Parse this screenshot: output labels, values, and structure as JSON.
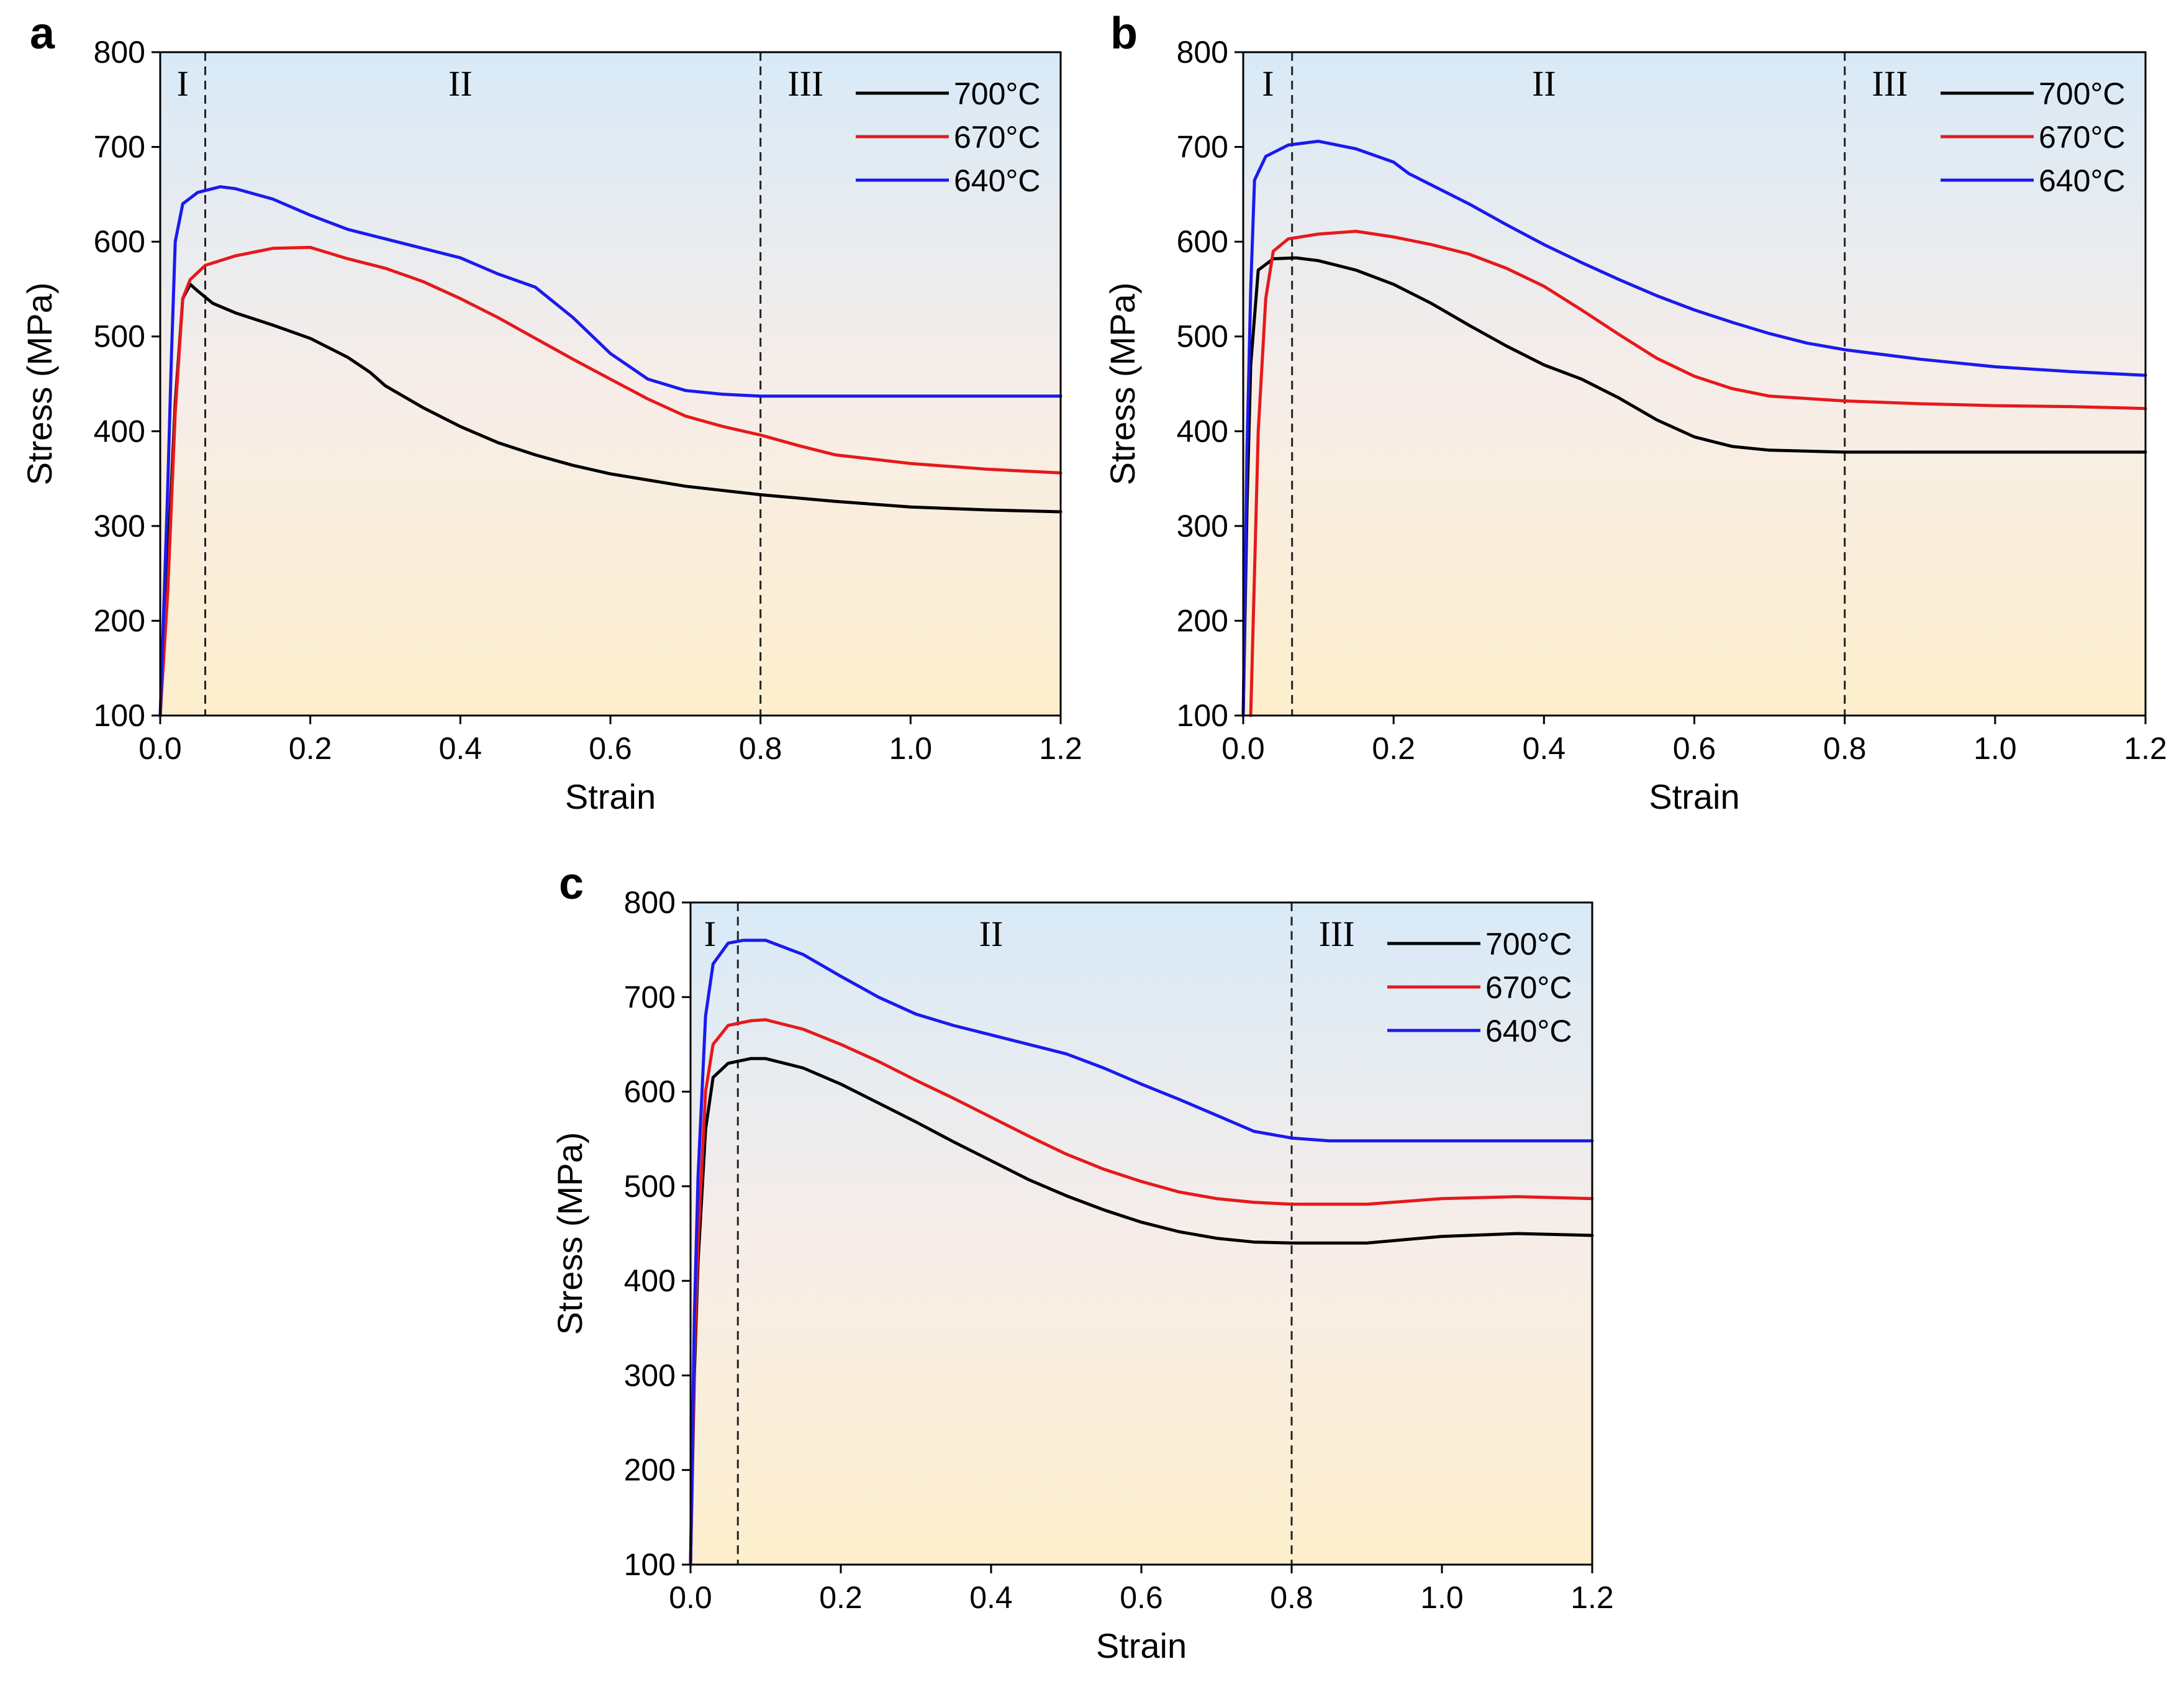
{
  "chart_data": [
    {
      "type": "line",
      "panel": "a",
      "xlabel": "Strain",
      "ylabel": "Stress (MPa)",
      "xlim": [
        0.0,
        1.2
      ],
      "ylim": [
        100,
        800
      ],
      "xticks": [
        "0.0",
        "0.2",
        "0.4",
        "0.6",
        "0.8",
        "1.0",
        "1.2"
      ],
      "yticks": [
        "100",
        "200",
        "300",
        "400",
        "500",
        "600",
        "700",
        "800"
      ],
      "dividers": [
        0.06,
        0.8
      ],
      "regions": [
        {
          "label": "I",
          "x": 0.03
        },
        {
          "label": "II",
          "x": 0.4
        },
        {
          "label": "III",
          "x": 0.86
        }
      ],
      "series": [
        {
          "name": "700°C",
          "color": "#000000",
          "points": [
            [
              0,
              100
            ],
            [
              0.01,
              260
            ],
            [
              0.02,
              430
            ],
            [
              0.03,
              540
            ],
            [
              0.04,
              555
            ],
            [
              0.05,
              548
            ],
            [
              0.07,
              535
            ],
            [
              0.1,
              525
            ],
            [
              0.15,
              512
            ],
            [
              0.2,
              498
            ],
            [
              0.25,
              478
            ],
            [
              0.28,
              462
            ],
            [
              0.3,
              448
            ],
            [
              0.35,
              425
            ],
            [
              0.4,
              405
            ],
            [
              0.45,
              388
            ],
            [
              0.5,
              375
            ],
            [
              0.55,
              364
            ],
            [
              0.6,
              355
            ],
            [
              0.7,
              342
            ],
            [
              0.8,
              333
            ],
            [
              0.9,
              326
            ],
            [
              1.0,
              320
            ],
            [
              1.1,
              317
            ],
            [
              1.2,
              315
            ]
          ]
        },
        {
          "name": "670°C",
          "color": "#e6191b",
          "points": [
            [
              0,
              100
            ],
            [
              0.01,
              230
            ],
            [
              0.02,
              420
            ],
            [
              0.03,
              540
            ],
            [
              0.04,
              560
            ],
            [
              0.06,
              575
            ],
            [
              0.1,
              585
            ],
            [
              0.15,
              593
            ],
            [
              0.2,
              594
            ],
            [
              0.25,
              582
            ],
            [
              0.3,
              572
            ],
            [
              0.35,
              558
            ],
            [
              0.4,
              540
            ],
            [
              0.45,
              520
            ],
            [
              0.5,
              498
            ],
            [
              0.55,
              476
            ],
            [
              0.6,
              455
            ],
            [
              0.65,
              434
            ],
            [
              0.7,
              416
            ],
            [
              0.75,
              405
            ],
            [
              0.8,
              396
            ],
            [
              0.85,
              385
            ],
            [
              0.9,
              375
            ],
            [
              1.0,
              366
            ],
            [
              1.1,
              360
            ],
            [
              1.2,
              356
            ]
          ]
        },
        {
          "name": "640°C",
          "color": "#1a1aee",
          "points": [
            [
              0,
              100
            ],
            [
              0.01,
              340
            ],
            [
              0.015,
              480
            ],
            [
              0.02,
              600
            ],
            [
              0.03,
              640
            ],
            [
              0.05,
              652
            ],
            [
              0.08,
              658
            ],
            [
              0.1,
              656
            ],
            [
              0.15,
              645
            ],
            [
              0.2,
              628
            ],
            [
              0.25,
              613
            ],
            [
              0.3,
              603
            ],
            [
              0.35,
              593
            ],
            [
              0.4,
              583
            ],
            [
              0.45,
              566
            ],
            [
              0.5,
              552
            ],
            [
              0.55,
              520
            ],
            [
              0.6,
              482
            ],
            [
              0.65,
              455
            ],
            [
              0.7,
              443
            ],
            [
              0.75,
              439
            ],
            [
              0.8,
              437
            ],
            [
              0.9,
              437
            ],
            [
              1.0,
              437
            ],
            [
              1.2,
              437
            ]
          ]
        }
      ]
    },
    {
      "type": "line",
      "panel": "b",
      "xlabel": "Strain",
      "ylabel": "Stress (MPa)",
      "xlim": [
        0.0,
        1.2
      ],
      "ylim": [
        100,
        800
      ],
      "xticks": [
        "0.0",
        "0.2",
        "0.4",
        "0.6",
        "0.8",
        "1.0",
        "1.2"
      ],
      "yticks": [
        "100",
        "200",
        "300",
        "400",
        "500",
        "600",
        "700",
        "800"
      ],
      "dividers": [
        0.065,
        0.8
      ],
      "regions": [
        {
          "label": "I",
          "x": 0.033
        },
        {
          "label": "II",
          "x": 0.4
        },
        {
          "label": "III",
          "x": 0.86
        }
      ],
      "series": [
        {
          "name": "700°C",
          "color": "#000000",
          "points": [
            [
              0,
              100
            ],
            [
              0.005,
              320
            ],
            [
              0.01,
              470
            ],
            [
              0.02,
              570
            ],
            [
              0.04,
              582
            ],
            [
              0.07,
              583
            ],
            [
              0.1,
              580
            ],
            [
              0.15,
              570
            ],
            [
              0.2,
              555
            ],
            [
              0.25,
              535
            ],
            [
              0.3,
              512
            ],
            [
              0.35,
              490
            ],
            [
              0.4,
              470
            ],
            [
              0.45,
              455
            ],
            [
              0.5,
              435
            ],
            [
              0.55,
              412
            ],
            [
              0.6,
              394
            ],
            [
              0.65,
              384
            ],
            [
              0.7,
              380
            ],
            [
              0.8,
              378
            ],
            [
              0.9,
              378
            ],
            [
              1.0,
              378
            ],
            [
              1.2,
              378
            ]
          ]
        },
        {
          "name": "670°C",
          "color": "#e6191b",
          "points": [
            [
              0.01,
              100
            ],
            [
              0.015,
              250
            ],
            [
              0.02,
              400
            ],
            [
              0.03,
              540
            ],
            [
              0.04,
              590
            ],
            [
              0.06,
              603
            ],
            [
              0.1,
              608
            ],
            [
              0.15,
              611
            ],
            [
              0.2,
              605
            ],
            [
              0.25,
              597
            ],
            [
              0.3,
              587
            ],
            [
              0.35,
              572
            ],
            [
              0.4,
              553
            ],
            [
              0.45,
              528
            ],
            [
              0.5,
              502
            ],
            [
              0.55,
              477
            ],
            [
              0.6,
              458
            ],
            [
              0.65,
              445
            ],
            [
              0.7,
              437
            ],
            [
              0.8,
              432
            ],
            [
              0.9,
              429
            ],
            [
              1.0,
              427
            ],
            [
              1.1,
              426
            ],
            [
              1.2,
              424
            ]
          ]
        },
        {
          "name": "640°C",
          "color": "#1a1aee",
          "points": [
            [
              0,
              100
            ],
            [
              0.005,
              380
            ],
            [
              0.01,
              550
            ],
            [
              0.015,
              665
            ],
            [
              0.03,
              690
            ],
            [
              0.06,
              702
            ],
            [
              0.1,
              706
            ],
            [
              0.15,
              698
            ],
            [
              0.2,
              684
            ],
            [
              0.22,
              672
            ],
            [
              0.3,
              640
            ],
            [
              0.35,
              618
            ],
            [
              0.4,
              597
            ],
            [
              0.45,
              578
            ],
            [
              0.5,
              560
            ],
            [
              0.55,
              543
            ],
            [
              0.6,
              528
            ],
            [
              0.65,
              515
            ],
            [
              0.7,
              503
            ],
            [
              0.75,
              493
            ],
            [
              0.8,
              486
            ],
            [
              0.9,
              476
            ],
            [
              1.0,
              468
            ],
            [
              1.1,
              463
            ],
            [
              1.2,
              459
            ]
          ]
        }
      ]
    },
    {
      "type": "line",
      "panel": "c",
      "xlabel": "Strain",
      "ylabel": "Stress (MPa)",
      "xlim": [
        0.0,
        1.2
      ],
      "ylim": [
        100,
        800
      ],
      "xticks": [
        "0.0",
        "0.2",
        "0.4",
        "0.6",
        "0.8",
        "1.0",
        "1.2"
      ],
      "yticks": [
        "100",
        "200",
        "300",
        "400",
        "500",
        "600",
        "700",
        "800"
      ],
      "dividers": [
        0.063,
        0.8
      ],
      "regions": [
        {
          "label": "I",
          "x": 0.026
        },
        {
          "label": "II",
          "x": 0.4
        },
        {
          "label": "III",
          "x": 0.86
        }
      ],
      "series": [
        {
          "name": "700°C",
          "color": "#000000",
          "points": [
            [
              0,
              100
            ],
            [
              0.005,
              300
            ],
            [
              0.01,
              420
            ],
            [
              0.02,
              560
            ],
            [
              0.03,
              615
            ],
            [
              0.05,
              630
            ],
            [
              0.08,
              635
            ],
            [
              0.1,
              635
            ],
            [
              0.15,
              625
            ],
            [
              0.2,
              608
            ],
            [
              0.25,
              588
            ],
            [
              0.3,
              568
            ],
            [
              0.35,
              547
            ],
            [
              0.4,
              527
            ],
            [
              0.45,
              507
            ],
            [
              0.5,
              490
            ],
            [
              0.55,
              475
            ],
            [
              0.6,
              462
            ],
            [
              0.65,
              452
            ],
            [
              0.7,
              445
            ],
            [
              0.75,
              441
            ],
            [
              0.8,
              440
            ],
            [
              0.9,
              440
            ],
            [
              1.0,
              447
            ],
            [
              1.1,
              450
            ],
            [
              1.2,
              448
            ]
          ]
        },
        {
          "name": "670°C",
          "color": "#e6191b",
          "points": [
            [
              0,
              100
            ],
            [
              0.005,
              320
            ],
            [
              0.01,
              440
            ],
            [
              0.02,
              600
            ],
            [
              0.03,
              650
            ],
            [
              0.05,
              670
            ],
            [
              0.08,
              675
            ],
            [
              0.1,
              676
            ],
            [
              0.15,
              666
            ],
            [
              0.2,
              650
            ],
            [
              0.25,
              632
            ],
            [
              0.3,
              612
            ],
            [
              0.35,
              593
            ],
            [
              0.4,
              573
            ],
            [
              0.45,
              553
            ],
            [
              0.5,
              534
            ],
            [
              0.55,
              518
            ],
            [
              0.6,
              505
            ],
            [
              0.65,
              494
            ],
            [
              0.7,
              487
            ],
            [
              0.75,
              483
            ],
            [
              0.8,
              481
            ],
            [
              0.9,
              481
            ],
            [
              1.0,
              487
            ],
            [
              1.1,
              489
            ],
            [
              1.2,
              487
            ]
          ]
        },
        {
          "name": "640°C",
          "color": "#1a1aee",
          "points": [
            [
              0,
              100
            ],
            [
              0.005,
              360
            ],
            [
              0.01,
              510
            ],
            [
              0.02,
              680
            ],
            [
              0.03,
              735
            ],
            [
              0.05,
              757
            ],
            [
              0.07,
              760
            ],
            [
              0.1,
              760
            ],
            [
              0.15,
              745
            ],
            [
              0.2,
              722
            ],
            [
              0.25,
              700
            ],
            [
              0.3,
              682
            ],
            [
              0.35,
              670
            ],
            [
              0.4,
              660
            ],
            [
              0.45,
              650
            ],
            [
              0.5,
              640
            ],
            [
              0.55,
              625
            ],
            [
              0.6,
              608
            ],
            [
              0.65,
              592
            ],
            [
              0.7,
              575
            ],
            [
              0.75,
              558
            ],
            [
              0.8,
              551
            ],
            [
              0.85,
              548
            ],
            [
              0.9,
              548
            ],
            [
              1.0,
              548
            ],
            [
              1.2,
              548
            ]
          ]
        }
      ]
    }
  ]
}
